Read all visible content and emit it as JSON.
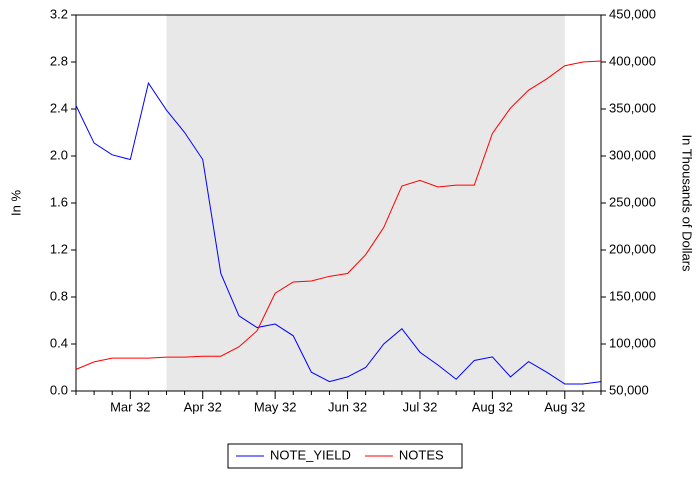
{
  "chart_data": {
    "type": "line",
    "y_label": "In %",
    "y2_label": "In Thousands of Dollars",
    "categories": [
      null,
      null,
      null,
      "Mar 32",
      null,
      null,
      null,
      "Apr 32",
      null,
      null,
      null,
      "May 32",
      null,
      null,
      null,
      "Jun 32",
      null,
      null,
      null,
      "Jul 32",
      null,
      null,
      null,
      "Aug 32",
      null,
      null,
      null,
      "Aug 32",
      null,
      null
    ],
    "shaded_range": [
      5,
      27
    ],
    "ylim": [
      0,
      3.2
    ],
    "yticks": [
      {
        "value": 0,
        "label": "0.0"
      },
      0.4,
      0.8,
      1.2,
      1.6,
      {
        "value": 2,
        "label": "2.0"
      },
      2.4,
      2.8,
      3.2
    ],
    "y2lim": [
      50000,
      450000
    ],
    "y2ticks": [
      {
        "value": 50000,
        "label": "50,000"
      },
      {
        "value": 100000,
        "label": "100,000"
      },
      {
        "value": 150000,
        "label": "150,000"
      },
      {
        "value": 200000,
        "label": "200,000"
      },
      {
        "value": 250000,
        "label": "250,000"
      },
      {
        "value": 300000,
        "label": "300,000"
      },
      {
        "value": 350000,
        "label": "350,000"
      },
      {
        "value": 400000,
        "label": "400,000"
      },
      {
        "value": 450000,
        "label": "450,000"
      }
    ],
    "legend": "bottom",
    "series": [
      {
        "name": "NOTE_YIELD",
        "color": "#0000ff",
        "values": [
          2.43,
          2.11,
          2.01,
          1.97,
          2.62,
          2.39,
          2.2,
          1.97,
          1.0,
          0.64,
          0.54,
          0.57,
          0.47,
          0.16,
          0.08,
          0.12,
          0.2,
          0.4,
          0.53,
          0.33,
          0.22,
          0.1,
          0.26,
          0.29,
          0.12,
          0.25,
          0.16,
          0.06,
          0.06,
          0.08
        ]
      },
      {
        "name": "NOTES",
        "color": "#ff0000",
        "axis": "y2",
        "values": [
          73000,
          81000,
          85000,
          85000,
          85000,
          86000,
          86000,
          87000,
          87000,
          97000,
          114000,
          154000,
          166000,
          167000,
          172000,
          175000,
          195000,
          224000,
          268000,
          274000,
          267000,
          269000,
          269000,
          324000,
          351000,
          370000,
          382000,
          396000,
          400000,
          401000
        ]
      }
    ]
  }
}
